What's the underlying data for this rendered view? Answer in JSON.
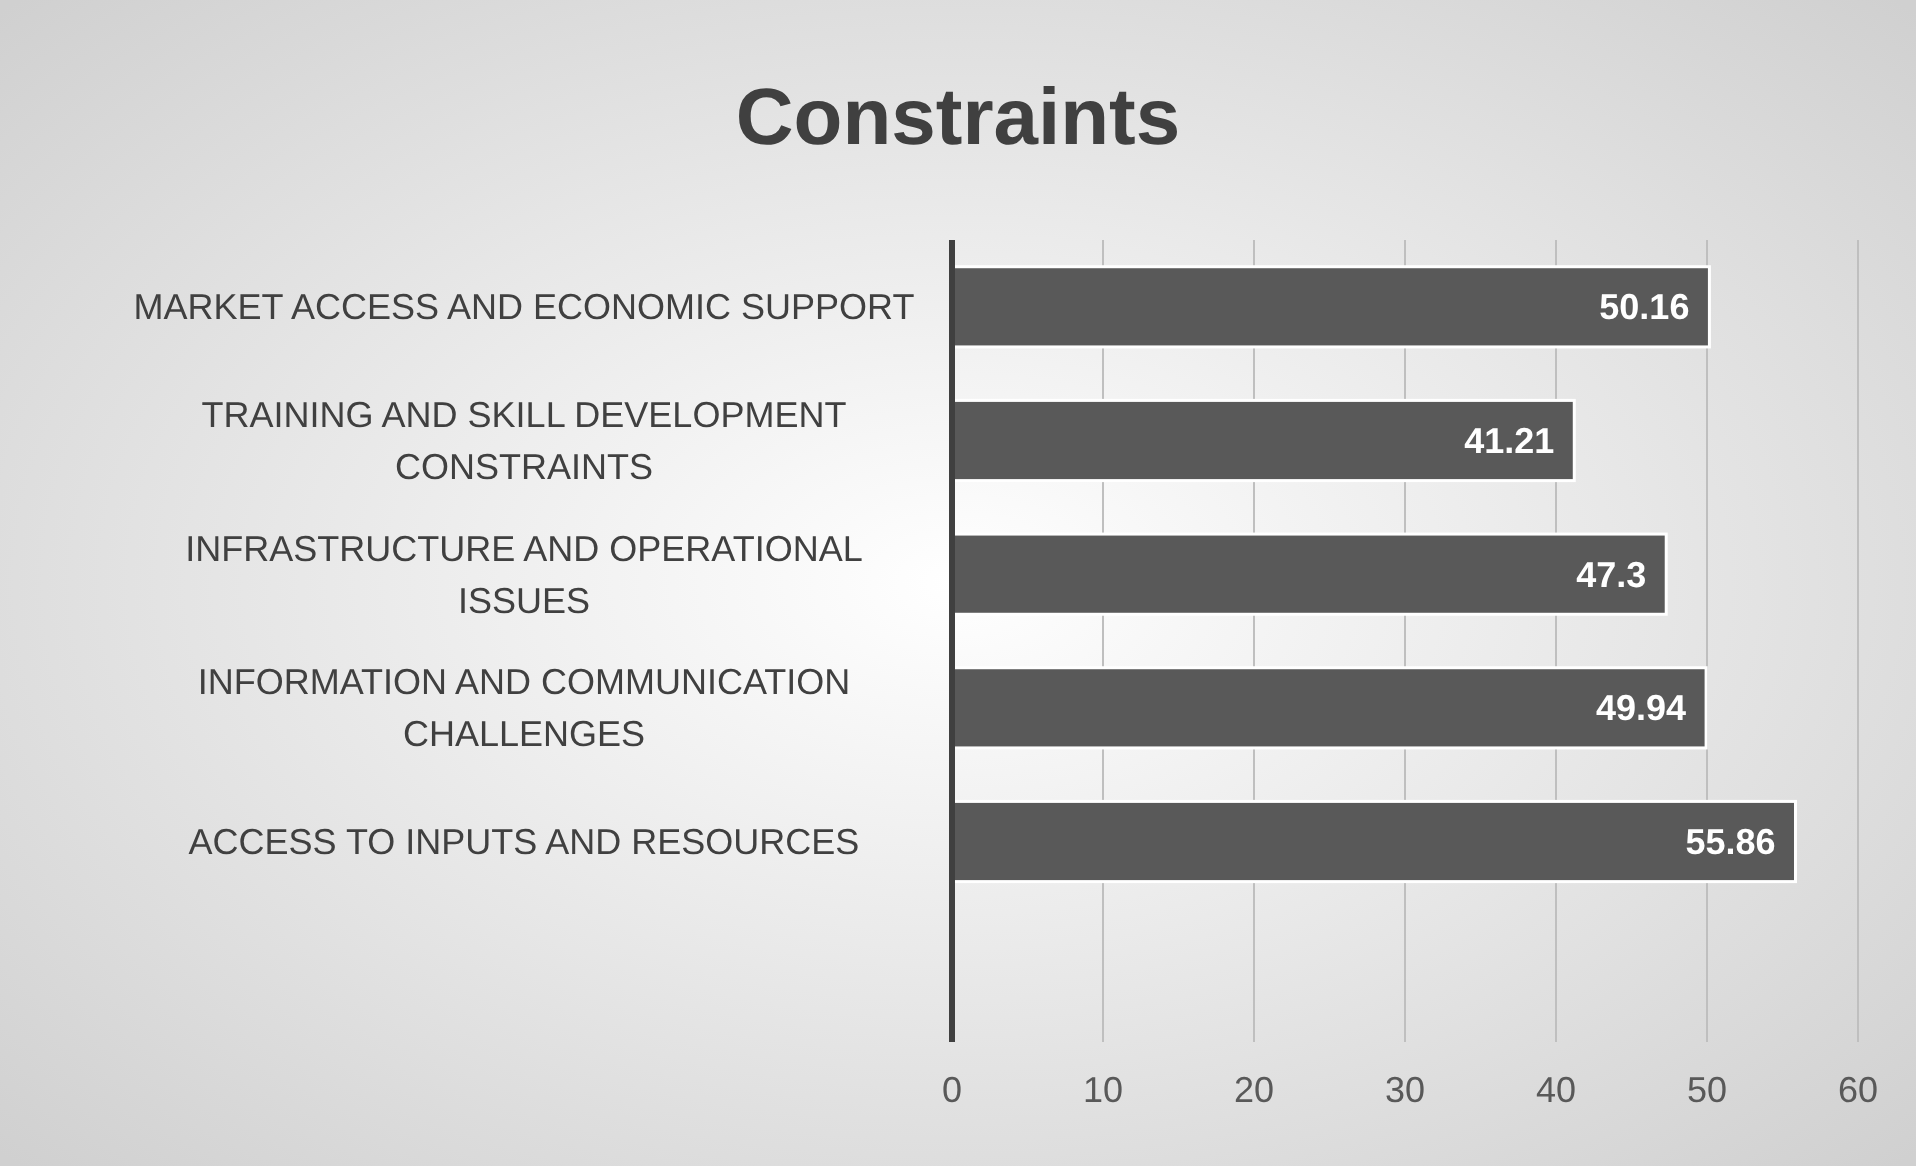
{
  "chart_data": {
    "type": "bar",
    "orientation": "horizontal",
    "title": "Constraints",
    "categories": [
      "MARKET ACCESS AND ECONOMIC SUPPORT",
      "TRAINING AND SKILL DEVELOPMENT CONSTRAINTS",
      "INFRASTRUCTURE AND OPERATIONAL ISSUES",
      "INFORMATION AND COMMUNICATION CHALLENGES",
      "ACCESS TO INPUTS AND RESOURCES",
      null
    ],
    "values": [
      50.16,
      41.21,
      47.3,
      49.94,
      55.86,
      null
    ],
    "color": "#595959",
    "xlim": [
      0,
      60
    ],
    "xticks": [
      0,
      10,
      20,
      30,
      40,
      50,
      60
    ],
    "grid": "x",
    "data_labels": true
  }
}
